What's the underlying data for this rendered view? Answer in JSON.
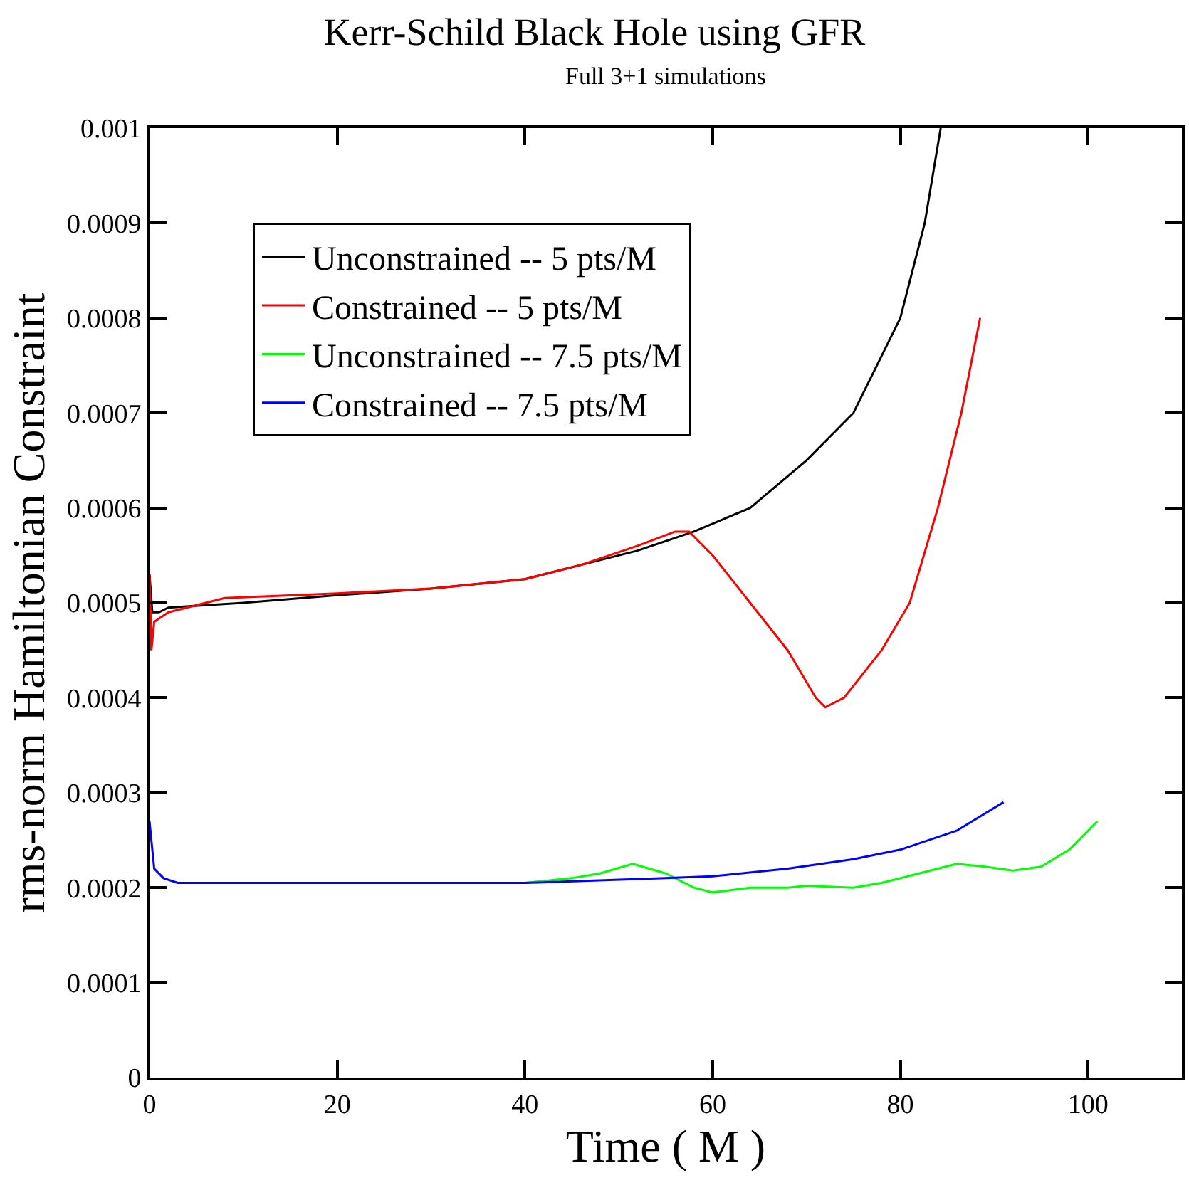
{
  "chart_data": {
    "type": "line",
    "title": "Kerr-Schild Black Hole using GFR",
    "subtitle": "Full 3+1 simulations",
    "xlabel": "Time ( M )",
    "ylabel": "rms-norm Hamiltonian Constraint",
    "xlim": [
      0,
      110
    ],
    "xticks": [
      0,
      20,
      40,
      60,
      80,
      100
    ],
    "ylim": [
      0,
      0.001
    ],
    "yticks": [
      0,
      0.0001,
      0.0002,
      0.0003,
      0.0004,
      0.0005,
      0.0006,
      0.0007,
      0.0008,
      0.0009,
      0.001
    ],
    "legend": "top left",
    "marker": "none",
    "line_style": "solid",
    "series": [
      {
        "name": "Unconstrained -- 5 pts/M",
        "color": "#000000",
        "x": [
          0,
          0.3,
          1,
          2,
          10,
          20,
          30,
          40,
          46,
          52,
          58,
          64,
          70,
          75,
          80,
          82.6,
          84.3
        ],
        "values": [
          0.00053,
          0.00049,
          0.00049,
          0.000495,
          0.0005,
          0.000508,
          0.000515,
          0.000525,
          0.00054,
          0.000555,
          0.000575,
          0.0006,
          0.00065,
          0.0007,
          0.0008,
          0.0009,
          0.001
        ]
      },
      {
        "name": "Constrained -- 5 pts/M",
        "color": "#ff0000",
        "x": [
          0,
          0.2,
          0.5,
          2,
          8,
          20,
          30,
          40,
          46,
          52,
          56,
          57.5,
          60,
          64,
          68,
          71,
          72,
          74,
          78,
          81,
          84,
          86.5,
          88.5
        ],
        "values": [
          0.00053,
          0.00045,
          0.00048,
          0.00049,
          0.000505,
          0.00051,
          0.000515,
          0.000525,
          0.00054,
          0.00056,
          0.000575,
          0.000575,
          0.00055,
          0.0005,
          0.00045,
          0.0004,
          0.00039,
          0.0004,
          0.00045,
          0.0005,
          0.0006,
          0.0007,
          0.0008
        ]
      },
      {
        "name": "Unconstrained -- 7.5 pts/M",
        "color": "#00ff00",
        "x": [
          40,
          45,
          48,
          51.5,
          55,
          58,
          60,
          64,
          68,
          70,
          75,
          78,
          82,
          86,
          89,
          92,
          95,
          98,
          101
        ],
        "values": [
          0.000205,
          0.00021,
          0.000215,
          0.000225,
          0.000215,
          0.0002,
          0.000195,
          0.0002,
          0.0002,
          0.000202,
          0.0002,
          0.000205,
          0.000215,
          0.000225,
          0.000222,
          0.000218,
          0.000222,
          0.00024,
          0.00027
        ]
      },
      {
        "name": "Constrained -- 7.5 pts/M",
        "color": "#0000ff",
        "x": [
          0,
          0.5,
          1.5,
          3,
          20,
          40,
          55,
          60,
          68,
          75,
          80,
          86,
          91
        ],
        "values": [
          0.00027,
          0.00022,
          0.00021,
          0.000205,
          0.000205,
          0.000205,
          0.00021,
          0.000212,
          0.00022,
          0.00023,
          0.00024,
          0.00026,
          0.00029
        ]
      }
    ]
  }
}
